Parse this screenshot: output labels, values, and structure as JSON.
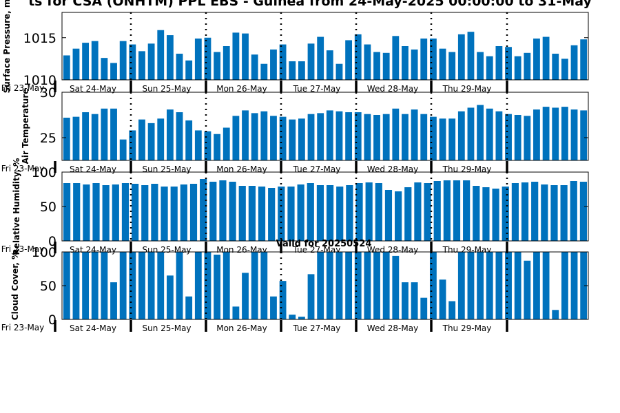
{
  "figure": {
    "title": "ts for CSA (ONHTM) PPL EBS  - Guinea from 24-May-2025 00:00:00 to 31-May",
    "bar_color": "#0072bd"
  },
  "chart_data": [
    {
      "type": "bar",
      "ylabel": "Surface Pressure, m",
      "ylim": [
        1010,
        1018
      ],
      "yticks": [
        1010,
        1015
      ],
      "start_label": "Fri 23-May",
      "day_labels": [
        "Sat 24-May",
        "Sun 25-May",
        "Mon 26-May",
        "Tue 27-May",
        "Wed 28-May",
        "Thu 29-May"
      ],
      "values": [
        1012.9,
        1013.7,
        1014.4,
        1014.6,
        1012.6,
        1012.0,
        1014.6,
        1014.2,
        1013.4,
        1014.3,
        1015.9,
        1015.3,
        1013.1,
        1012.3,
        1014.9,
        1015.0,
        1013.3,
        1014.0,
        1015.6,
        1015.5,
        1013.0,
        1011.9,
        1013.6,
        1014.2,
        1012.2,
        1012.2,
        1014.3,
        1015.1,
        1013.5,
        1011.9,
        1014.7,
        1015.4,
        1014.2,
        1013.3,
        1013.2,
        1015.2,
        1014.0,
        1013.6,
        1014.9,
        1014.9,
        1013.7,
        1013.3,
        1015.4,
        1015.7,
        1013.3,
        1012.8,
        1014.0,
        1013.9,
        1012.8,
        1013.2,
        1014.9,
        1015.1,
        1013.1,
        1012.5,
        1014.1,
        1014.8
      ]
    },
    {
      "type": "bar",
      "ylabel": "Air Temperature",
      "ylim": [
        22.5,
        30
      ],
      "yticks": [
        25,
        30
      ],
      "start_label": "Fri 23-May",
      "day_labels": [
        "Sat 24-May",
        "Sun 25-May",
        "Mon 26-May",
        "Tue 27-May",
        "Wed 28-May",
        "Thu 29-May"
      ],
      "values": [
        27.2,
        27.3,
        27.8,
        27.6,
        28.2,
        28.2,
        24.8,
        25.8,
        27.0,
        26.6,
        27.1,
        28.1,
        27.8,
        26.9,
        25.8,
        25.7,
        25.4,
        26.1,
        27.4,
        28.0,
        27.7,
        27.9,
        27.4,
        27.3,
        27.0,
        27.1,
        27.6,
        27.7,
        28.0,
        27.9,
        27.8,
        27.8,
        27.6,
        27.5,
        27.6,
        28.2,
        27.6,
        28.1,
        27.6,
        27.3,
        27.1,
        27.1,
        27.9,
        28.3,
        28.6,
        28.2,
        27.9,
        27.6,
        27.5,
        27.4,
        28.1,
        28.4,
        28.3,
        28.4,
        28.1,
        28.0
      ]
    },
    {
      "type": "bar",
      "ylabel": "Relative Humidity, %",
      "ylim": [
        0,
        100
      ],
      "yticks": [
        0,
        50,
        100
      ],
      "start_label": "Fri 23-May",
      "day_labels": [
        "Sat 24-May",
        "Sun 25-May",
        "Mon 26-May",
        "Tue 27-May",
        "Wed 28-May",
        "Thu 29-May"
      ],
      "values": [
        84,
        84,
        82,
        84,
        81,
        82,
        84,
        83,
        81,
        83,
        79,
        79,
        82,
        83,
        90,
        86,
        88,
        86,
        80,
        80,
        79,
        77,
        79,
        79,
        82,
        84,
        81,
        81,
        79,
        81,
        84,
        85,
        84,
        74,
        72,
        78,
        85,
        84,
        87,
        88,
        88,
        88,
        80,
        78,
        76,
        79,
        84,
        85,
        86,
        82,
        81,
        81,
        87,
        86
      ]
    },
    {
      "type": "bar",
      "title": "Valid for 20250524",
      "ylabel": "Cloud Cover, %",
      "ylim": [
        0,
        100
      ],
      "yticks": [
        0,
        50,
        100
      ],
      "start_label": "Fri 23-May",
      "day_labels": [
        "Sat 24-May",
        "Sun 25-May",
        "Mon 26-May",
        "Tue 27-May",
        "Wed 28-May",
        "Thu 29-May"
      ],
      "values": [
        100,
        100,
        100,
        100,
        100,
        55,
        100,
        100,
        100,
        100,
        100,
        65,
        100,
        34,
        100,
        100,
        96,
        100,
        19,
        69,
        100,
        100,
        34,
        57,
        7,
        4,
        67,
        100,
        100,
        100,
        100,
        100,
        100,
        100,
        100,
        94,
        55,
        55,
        32,
        100,
        59,
        27,
        100,
        100,
        100,
        100,
        100,
        100,
        100,
        87,
        100,
        100,
        14,
        100,
        100,
        100
      ]
    }
  ]
}
